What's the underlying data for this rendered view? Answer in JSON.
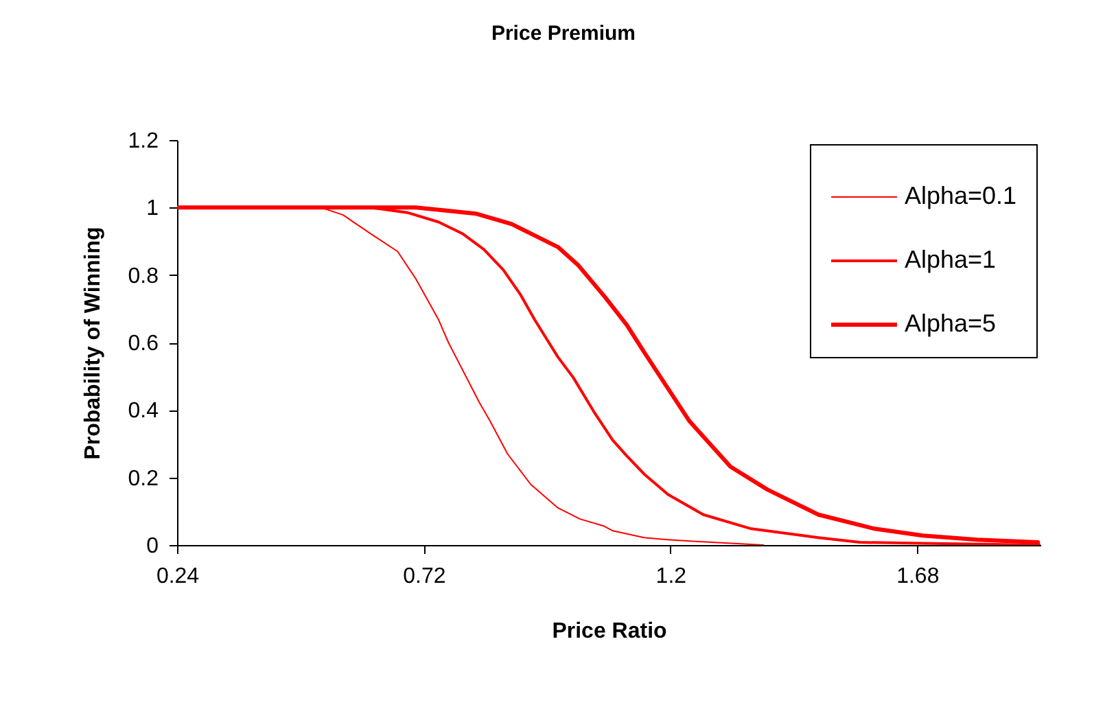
{
  "chart_data": {
    "type": "line",
    "title": "Price Premium",
    "xlabel": "Price Ratio",
    "ylabel": "Probability of Winning",
    "xlim": [
      0.24,
      1.92
    ],
    "xticks": [
      0.24,
      0.72,
      1.2,
      1.68
    ],
    "ylim": [
      0,
      1.2
    ],
    "yticks": [
      0,
      0.2,
      0.4,
      0.6,
      0.8,
      1,
      1.2
    ],
    "grid": false,
    "legend": "top right",
    "marker": "none",
    "line_style": "solid",
    "series": [
      {
        "name": "Alpha=0.1",
        "color": "#ff0000",
        "x": [
          0.24,
          0.52,
          0.563,
          0.616,
          0.669,
          0.704,
          0.749,
          0.768,
          0.829,
          0.848,
          0.883,
          0.928,
          0.981,
          1.024,
          1.069,
          1.088,
          1.149,
          1.195,
          1.256,
          1.381
        ],
        "values": [
          1,
          1,
          0.978,
          0.923,
          0.87,
          0.79,
          0.667,
          0.6,
          0.42,
          0.37,
          0.27,
          0.18,
          0.11,
          0.077,
          0.057,
          0.042,
          0.022,
          0.016,
          0.01,
          0
        ]
      },
      {
        "name": "Alpha=1",
        "color": "#ff0000",
        "x": [
          0.24,
          0.616,
          0.688,
          0.749,
          0.795,
          0.837,
          0.875,
          0.909,
          0.936,
          0.981,
          1.011,
          1.051,
          1.088,
          1.115,
          1.149,
          1.195,
          1.264,
          1.355,
          1.488,
          1.568,
          1.69,
          1.92
        ],
        "values": [
          1,
          1,
          0.985,
          0.957,
          0.923,
          0.876,
          0.815,
          0.74,
          0.667,
          0.557,
          0.496,
          0.395,
          0.31,
          0.264,
          0.21,
          0.15,
          0.09,
          0.049,
          0.022,
          0.008,
          0.005,
          0
        ]
      },
      {
        "name": "Alpha=5",
        "color": "#ff0000",
        "x": [
          0.24,
          0.704,
          0.757,
          0.821,
          0.891,
          0.936,
          0.981,
          1.02,
          1.073,
          1.115,
          1.149,
          1.237,
          1.317,
          1.389,
          1.488,
          1.595,
          1.691,
          1.797,
          1.915
        ],
        "values": [
          1,
          1,
          0.992,
          0.982,
          0.951,
          0.917,
          0.883,
          0.83,
          0.734,
          0.652,
          0.571,
          0.367,
          0.232,
          0.164,
          0.09,
          0.049,
          0.028,
          0.016,
          0.008
        ]
      }
    ]
  }
}
